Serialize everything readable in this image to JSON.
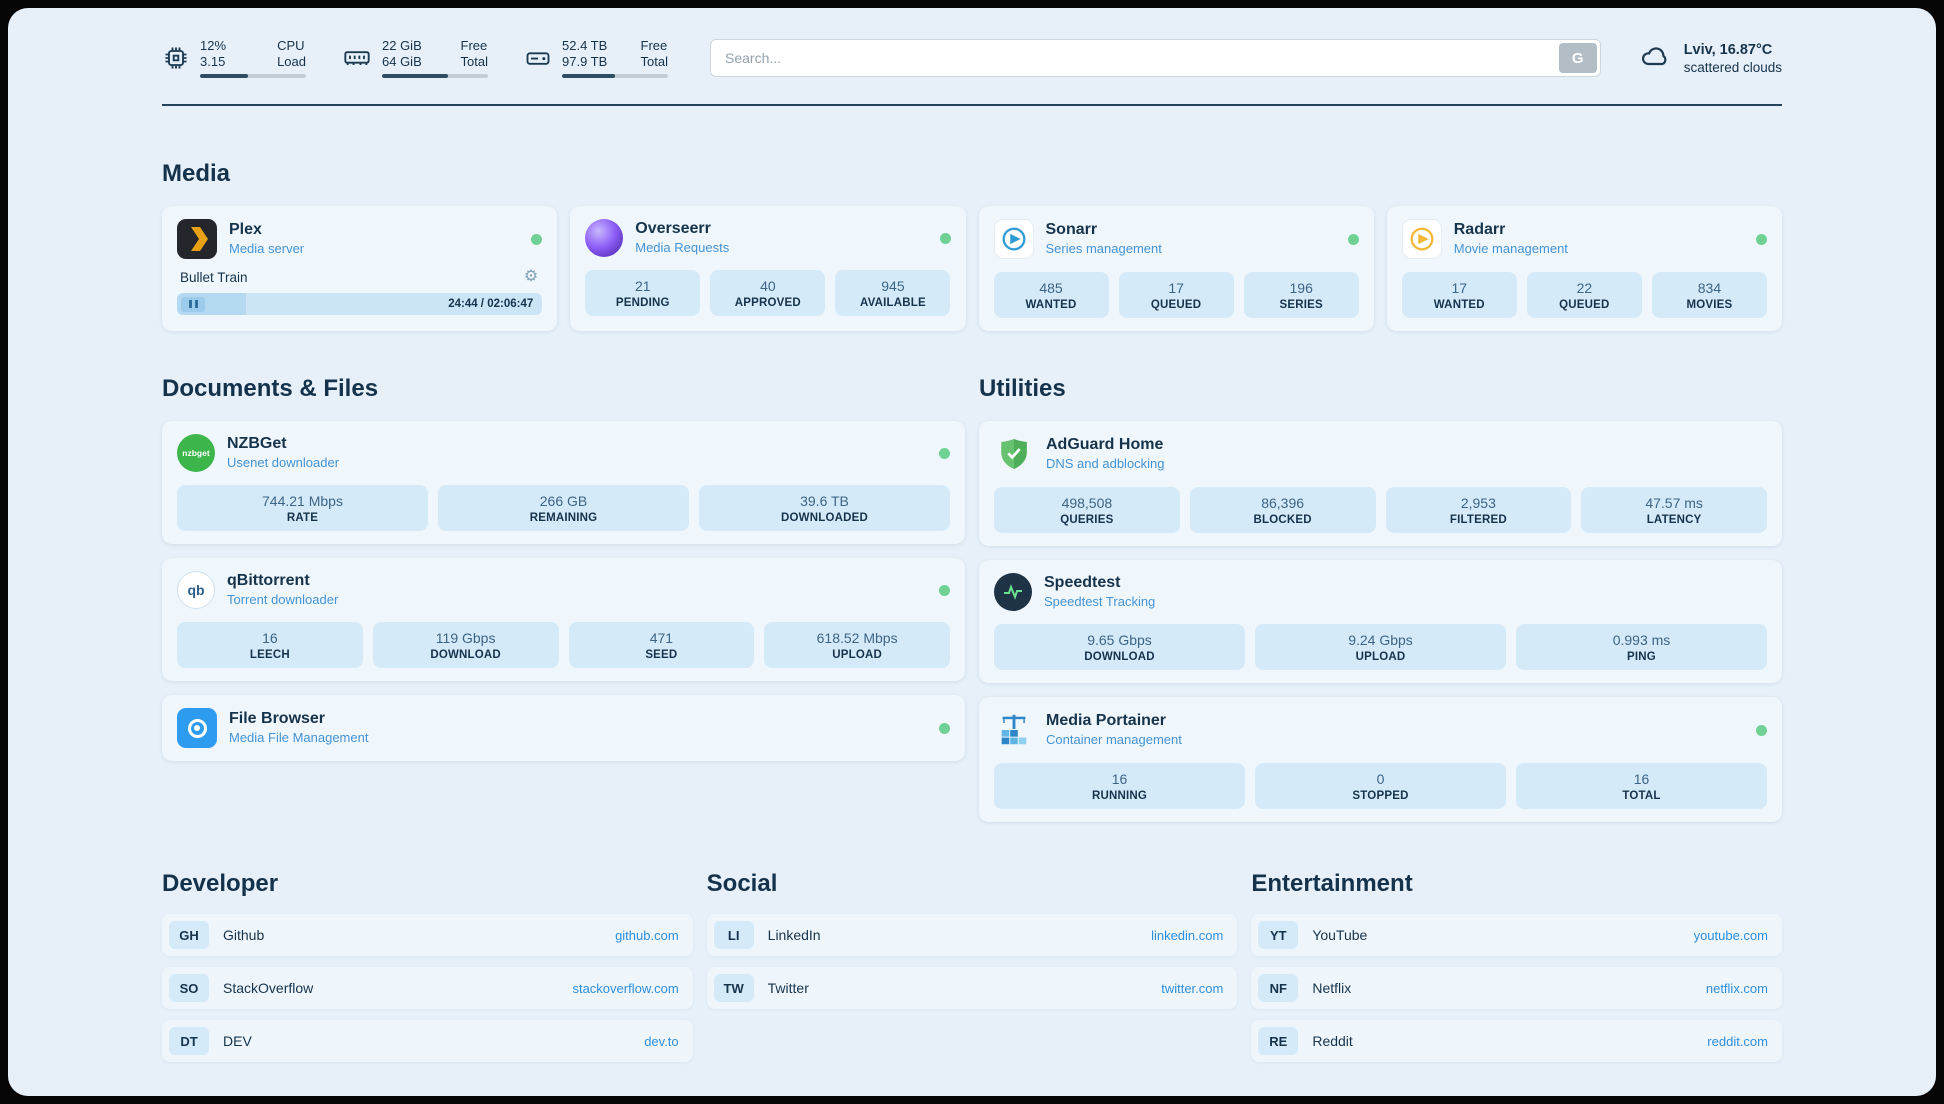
{
  "topbar": {
    "cpu": {
      "value_top": "12%",
      "value_bottom": "3.15",
      "label_top": "CPU",
      "label_bottom": "Load",
      "progress_pct": 45
    },
    "ram": {
      "value_top": "22 GiB",
      "value_bottom": "64 GiB",
      "label_top": "Free",
      "label_bottom": "Total",
      "progress_pct": 62
    },
    "disk": {
      "value_top": "52.4 TB",
      "value_bottom": "97.9 TB",
      "label_top": "Free",
      "label_bottom": "Total",
      "progress_pct": 50
    },
    "search": {
      "placeholder": "Search...",
      "engine_button": "G"
    },
    "weather": {
      "location": "Lviv, 16.87°C",
      "condition": "scattered clouds"
    }
  },
  "sections": {
    "media": {
      "title": "Media",
      "plex": {
        "name": "Plex",
        "subtitle": "Media server",
        "online": true,
        "now_playing": "Bullet Train",
        "time": "24:44 / 02:06:47",
        "progress_pct": 19
      },
      "overseerr": {
        "name": "Overseerr",
        "subtitle": "Media Requests",
        "online": true,
        "stats": [
          {
            "value": "21",
            "label": "PENDING"
          },
          {
            "value": "40",
            "label": "APPROVED"
          },
          {
            "value": "945",
            "label": "AVAILABLE"
          }
        ]
      },
      "sonarr": {
        "name": "Sonarr",
        "subtitle": "Series management",
        "online": true,
        "stats": [
          {
            "value": "485",
            "label": "WANTED"
          },
          {
            "value": "17",
            "label": "QUEUED"
          },
          {
            "value": "196",
            "label": "SERIES"
          }
        ]
      },
      "radarr": {
        "name": "Radarr",
        "subtitle": "Movie management",
        "online": true,
        "stats": [
          {
            "value": "17",
            "label": "WANTED"
          },
          {
            "value": "22",
            "label": "QUEUED"
          },
          {
            "value": "834",
            "label": "MOVIES"
          }
        ]
      }
    },
    "documents": {
      "title": "Documents & Files",
      "nzbget": {
        "name": "NZBGet",
        "subtitle": "Usenet downloader",
        "online": true,
        "stats": [
          {
            "value": "744.21 Mbps",
            "label": "RATE"
          },
          {
            "value": "266 GB",
            "label": "REMAINING"
          },
          {
            "value": "39.6 TB",
            "label": "DOWNLOADED"
          }
        ]
      },
      "qbittorrent": {
        "name": "qBittorrent",
        "subtitle": "Torrent downloader",
        "online": true,
        "stats": [
          {
            "value": "16",
            "label": "LEECH"
          },
          {
            "value": "119 Gbps",
            "label": "DOWNLOAD"
          },
          {
            "value": "471",
            "label": "SEED"
          },
          {
            "value": "618.52 Mbps",
            "label": "UPLOAD"
          }
        ]
      },
      "filebrowser": {
        "name": "File Browser",
        "subtitle": "Media File Management",
        "online": true
      }
    },
    "utilities": {
      "title": "Utilities",
      "adguard": {
        "name": "AdGuard Home",
        "subtitle": "DNS and adblocking",
        "online": false,
        "stats": [
          {
            "value": "498,508",
            "label": "QUERIES"
          },
          {
            "value": "86,396",
            "label": "BLOCKED"
          },
          {
            "value": "2,953",
            "label": "FILTERED"
          },
          {
            "value": "47.57 ms",
            "label": "LATENCY"
          }
        ]
      },
      "speedtest": {
        "name": "Speedtest",
        "subtitle": "Speedtest Tracking",
        "online": false,
        "stats": [
          {
            "value": "9.65 Gbps",
            "label": "DOWNLOAD"
          },
          {
            "value": "9.24 Gbps",
            "label": "UPLOAD"
          },
          {
            "value": "0.993 ms",
            "label": "PING"
          }
        ]
      },
      "portainer": {
        "name": "Media Portainer",
        "subtitle": "Container management",
        "online": true,
        "stats": [
          {
            "value": "16",
            "label": "RUNNING"
          },
          {
            "value": "0",
            "label": "STOPPED"
          },
          {
            "value": "16",
            "label": "TOTAL"
          }
        ]
      }
    }
  },
  "bookmarks": {
    "developer": {
      "title": "Developer",
      "items": [
        {
          "abbr": "GH",
          "name": "Github",
          "url": "github.com"
        },
        {
          "abbr": "SO",
          "name": "StackOverflow",
          "url": "stackoverflow.com"
        },
        {
          "abbr": "DT",
          "name": "DEV",
          "url": "dev.to"
        }
      ]
    },
    "social": {
      "title": "Social",
      "items": [
        {
          "abbr": "LI",
          "name": "LinkedIn",
          "url": "linkedin.com"
        },
        {
          "abbr": "TW",
          "name": "Twitter",
          "url": "twitter.com"
        }
      ]
    },
    "entertainment": {
      "title": "Entertainment",
      "items": [
        {
          "abbr": "YT",
          "name": "YouTube",
          "url": "youtube.com"
        },
        {
          "abbr": "NF",
          "name": "Netflix",
          "url": "netflix.com"
        },
        {
          "abbr": "RE",
          "name": "Reddit",
          "url": "reddit.com"
        }
      ]
    }
  },
  "icons": {
    "gear": "⚙",
    "nzbget_label": "nzbget",
    "qbittorrent_label": "qb"
  },
  "colors": {
    "status_online_green": "#6fd194",
    "accent_blue": "#2f8fdc",
    "subtitle_blue": "#4493d4",
    "page_bg": "#e7f0f8",
    "card_bg": "#f0f7fc",
    "stat_bg": "#d5eaf9"
  }
}
